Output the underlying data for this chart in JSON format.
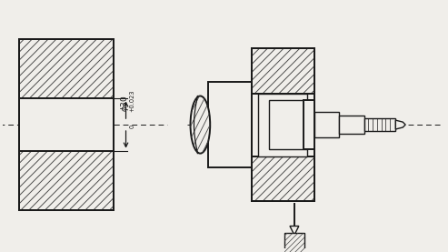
{
  "bg_color": "#f0eeea",
  "line_color": "#1a1a1a",
  "hatch_color": "#444444",
  "fig_width": 4.93,
  "fig_height": 2.77,
  "dpi": 100
}
